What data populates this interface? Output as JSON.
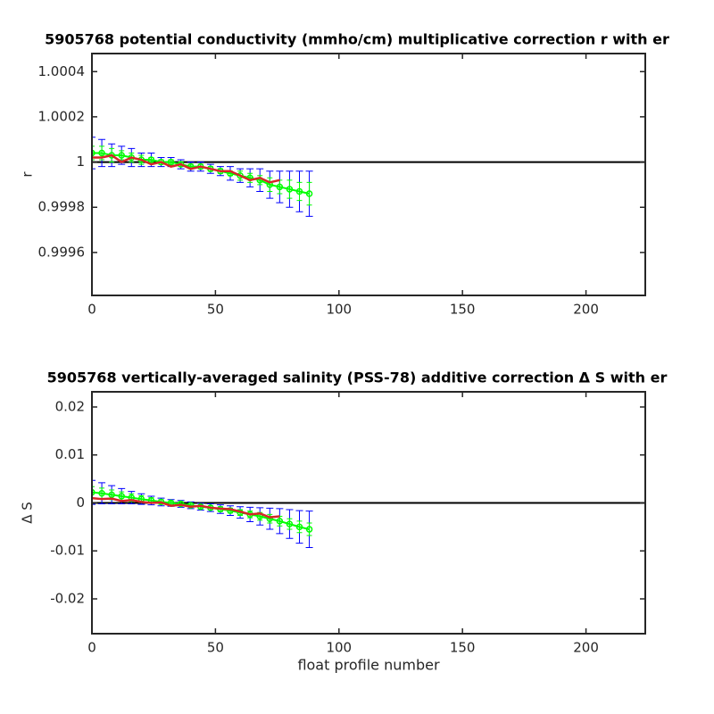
{
  "chart_data": [
    {
      "type": "errorbar",
      "title": "5905768 potential conductivity (mmho/cm) multiplicative correction r with er",
      "ylabel": "r",
      "xlim": [
        0,
        224
      ],
      "xticks": [
        0,
        50,
        100,
        150,
        200
      ],
      "ylim": [
        0.99941,
        1.00048
      ],
      "yticks": [
        0.9996,
        0.9998,
        1,
        1.0002,
        1.0004
      ],
      "hline": 1,
      "x": [
        0,
        4,
        8,
        12,
        16,
        20,
        24,
        28,
        32,
        36,
        40,
        44,
        48,
        52,
        56,
        60,
        64,
        68,
        72,
        76,
        80,
        84,
        88
      ],
      "series": [
        {
          "color": "#0000ff",
          "values": [
            1.00004,
            1.00004,
            1.00003,
            1.00003,
            1.00002,
            1.00001,
            1.00001,
            1.0,
            1.0,
            0.99999,
            0.99998,
            0.99998,
            0.99997,
            0.99996,
            0.99995,
            0.99994,
            0.99993,
            0.99992,
            0.9999,
            0.99989,
            0.99988,
            0.99987,
            0.99986
          ],
          "errors": [
            7e-05,
            6e-05,
            5e-05,
            4e-05,
            4e-05,
            3e-05,
            3e-05,
            2e-05,
            2e-05,
            2e-05,
            2e-05,
            2e-05,
            2e-05,
            2e-05,
            3e-05,
            3e-05,
            4e-05,
            5e-05,
            6e-05,
            7e-05,
            8e-05,
            9e-05,
            0.0001
          ]
        },
        {
          "color": "#00ff00",
          "values": [
            1.00004,
            1.00004,
            1.00003,
            1.00003,
            1.00002,
            1.00001,
            1.00001,
            1.0,
            1.0,
            0.99999,
            0.99998,
            0.99998,
            0.99997,
            0.99996,
            0.99995,
            0.99994,
            0.99993,
            0.99992,
            0.9999,
            0.99989,
            0.99988,
            0.99987,
            0.99986
          ],
          "errors": [
            3e-05,
            3e-05,
            3e-05,
            2e-05,
            2e-05,
            2e-05,
            1e-05,
            1e-05,
            1e-05,
            1e-05,
            1e-05,
            1e-05,
            1e-05,
            1e-05,
            1e-05,
            2e-05,
            2e-05,
            2e-05,
            3e-05,
            3e-05,
            4e-05,
            4e-05,
            5e-05
          ]
        }
      ],
      "line": {
        "color": "#d62728",
        "x": [
          0,
          4,
          8,
          12,
          16,
          20,
          24,
          28,
          32,
          36,
          40,
          44,
          48,
          52,
          56,
          60,
          64,
          68,
          72,
          76
        ],
        "values": [
          1.00002,
          1.00002,
          1.00003,
          1.0,
          1.00002,
          1.00001,
          0.99999,
          1.0,
          0.99998,
          0.99999,
          0.99997,
          0.99998,
          0.99997,
          0.99996,
          0.99996,
          0.99994,
          0.99992,
          0.99993,
          0.99991,
          0.99992
        ]
      }
    },
    {
      "type": "errorbar",
      "title": "5905768 vertically-averaged salinity (PSS-78) additive correction Δ S with er",
      "ylabel": "Δ S",
      "xlabel": "float profile number",
      "xlim": [
        0,
        224
      ],
      "xticks": [
        0,
        50,
        100,
        150,
        200
      ],
      "ylim": [
        -0.02726,
        0.02316
      ],
      "yticks": [
        -0.02,
        -0.01,
        0,
        0.01,
        0.02
      ],
      "hline": 0,
      "x": [
        0,
        4,
        8,
        12,
        16,
        20,
        24,
        28,
        32,
        36,
        40,
        44,
        48,
        52,
        56,
        60,
        64,
        68,
        72,
        76,
        80,
        84,
        88
      ],
      "series": [
        {
          "color": "#0000ff",
          "values": [
            0.0022,
            0.002,
            0.0017,
            0.0014,
            0.0011,
            0.0008,
            0.0005,
            0.0002,
            0,
            -0.0002,
            -0.0005,
            -0.0008,
            -0.001,
            -0.0013,
            -0.0016,
            -0.002,
            -0.0024,
            -0.0028,
            -0.0033,
            -0.0038,
            -0.0044,
            -0.005,
            -0.0055
          ],
          "errors": [
            0.0025,
            0.0022,
            0.0019,
            0.0016,
            0.0013,
            0.0011,
            0.0009,
            0.0008,
            0.0007,
            0.0007,
            0.0007,
            0.0007,
            0.0008,
            0.0009,
            0.001,
            0.0012,
            0.0015,
            0.0018,
            0.0022,
            0.0026,
            0.003,
            0.0034,
            0.0038
          ]
        },
        {
          "color": "#00ff00",
          "values": [
            0.0022,
            0.002,
            0.0017,
            0.0014,
            0.0011,
            0.0008,
            0.0005,
            0.0002,
            0,
            -0.0002,
            -0.0005,
            -0.0008,
            -0.001,
            -0.0013,
            -0.0016,
            -0.002,
            -0.0024,
            -0.0028,
            -0.0033,
            -0.0038,
            -0.0044,
            -0.005,
            -0.0055
          ],
          "errors": [
            0.0012,
            0.0011,
            0.001,
            0.0009,
            0.0008,
            0.0007,
            0.0006,
            0.0005,
            0.0004,
            0.0004,
            0.0004,
            0.0004,
            0.0004,
            0.0005,
            0.0005,
            0.0006,
            0.0007,
            0.0008,
            0.0009,
            0.001,
            0.0011,
            0.0012,
            0.0013
          ]
        }
      ],
      "line": {
        "color": "#d62728",
        "x": [
          0,
          4,
          8,
          12,
          16,
          20,
          24,
          28,
          32,
          36,
          40,
          44,
          48,
          52,
          56,
          60,
          64,
          68,
          72,
          76
        ],
        "values": [
          0.001,
          0.0008,
          0.0009,
          0.0004,
          0.0006,
          0.0002,
          0,
          0.0001,
          -0.0006,
          -0.0004,
          -0.0008,
          -0.0006,
          -0.001,
          -0.0012,
          -0.0013,
          -0.0018,
          -0.0024,
          -0.0022,
          -0.003,
          -0.0028
        ]
      }
    }
  ]
}
